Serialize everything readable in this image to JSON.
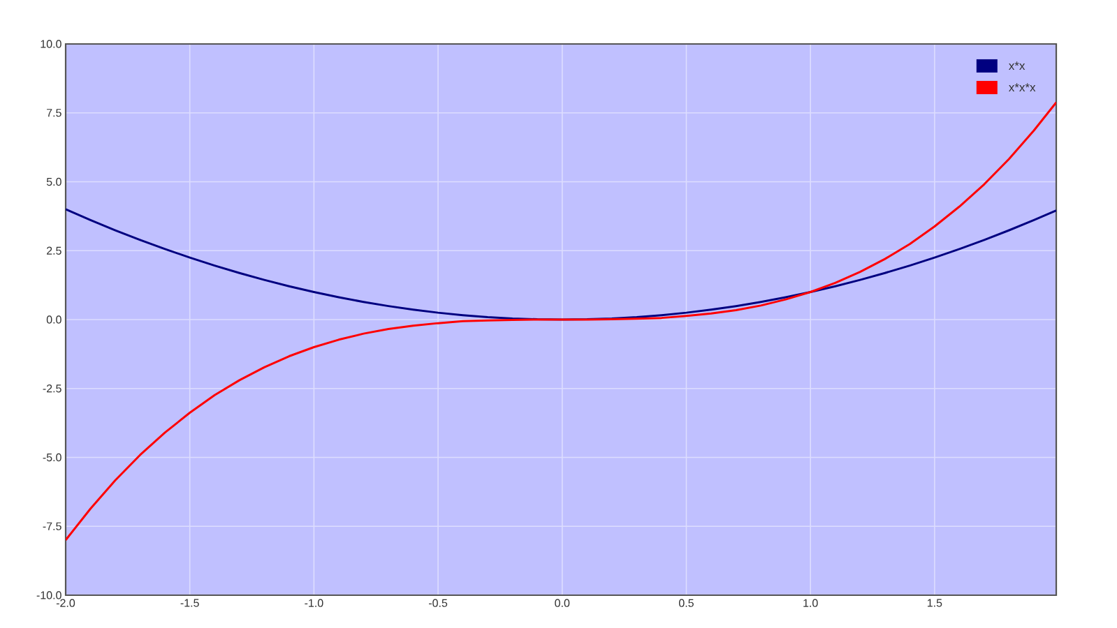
{
  "chart_data": {
    "type": "line",
    "x": [
      -2.0,
      -1.9,
      -1.8,
      -1.7,
      -1.6,
      -1.5,
      -1.4,
      -1.3,
      -1.2,
      -1.1,
      -1.0,
      -0.9,
      -0.8,
      -0.7,
      -0.6,
      -0.5,
      -0.4,
      -0.3,
      -0.2,
      -0.1,
      0.0,
      0.1,
      0.2,
      0.3,
      0.4,
      0.5,
      0.6,
      0.7,
      0.8,
      0.9,
      1.0,
      1.1,
      1.2,
      1.3,
      1.4,
      1.5,
      1.6,
      1.7,
      1.8,
      1.9,
      1.99
    ],
    "series": [
      {
        "name": "x*x",
        "color": "#000080",
        "values": [
          4.0,
          3.61,
          3.24,
          2.89,
          2.56,
          2.25,
          1.96,
          1.69,
          1.44,
          1.21,
          1.0,
          0.81,
          0.64,
          0.49,
          0.36,
          0.25,
          0.16,
          0.09,
          0.04,
          0.01,
          0.0,
          0.01,
          0.04,
          0.09,
          0.16,
          0.25,
          0.36,
          0.49,
          0.64,
          0.81,
          1.0,
          1.21,
          1.44,
          1.69,
          1.96,
          2.25,
          2.56,
          2.89,
          3.24,
          3.61,
          3.96
        ]
      },
      {
        "name": "x*x*x",
        "color": "#ff0000",
        "values": [
          -8.0,
          -6.86,
          -5.83,
          -4.91,
          -4.1,
          -3.38,
          -2.74,
          -2.2,
          -1.73,
          -1.33,
          -1.0,
          -0.73,
          -0.51,
          -0.34,
          -0.22,
          -0.13,
          -0.06,
          -0.03,
          -0.01,
          0.0,
          0.0,
          0.0,
          0.01,
          0.03,
          0.06,
          0.13,
          0.22,
          0.34,
          0.51,
          0.73,
          1.0,
          1.33,
          1.73,
          2.2,
          2.74,
          3.38,
          4.1,
          4.91,
          5.83,
          6.86,
          7.88
        ]
      }
    ],
    "xlim": [
      -2.0,
      1.99
    ],
    "ylim": [
      -10.0,
      10.0
    ],
    "xticks": [
      {
        "value": -2.0,
        "label": "-2.0"
      },
      {
        "value": -1.5,
        "label": "-1.5"
      },
      {
        "value": -1.0,
        "label": "-1.0"
      },
      {
        "value": -0.5,
        "label": "-0.5"
      },
      {
        "value": 0.0,
        "label": "0.0"
      },
      {
        "value": 0.5,
        "label": "0.5"
      },
      {
        "value": 1.0,
        "label": "1.0"
      },
      {
        "value": 1.5,
        "label": "1.5"
      }
    ],
    "yticks": [
      {
        "value": -10.0,
        "label": "-10.0"
      },
      {
        "value": -7.5,
        "label": "-7.5"
      },
      {
        "value": -5.0,
        "label": "-5.0"
      },
      {
        "value": -2.5,
        "label": "-2.5"
      },
      {
        "value": 0.0,
        "label": "0.0"
      },
      {
        "value": 2.5,
        "label": "2.5"
      },
      {
        "value": 5.0,
        "label": "5.0"
      },
      {
        "value": 7.5,
        "label": "7.5"
      },
      {
        "value": 10.0,
        "label": "10.0"
      }
    ],
    "grid": true,
    "legend": "top right",
    "marker": "none",
    "line_style": "solid"
  }
}
